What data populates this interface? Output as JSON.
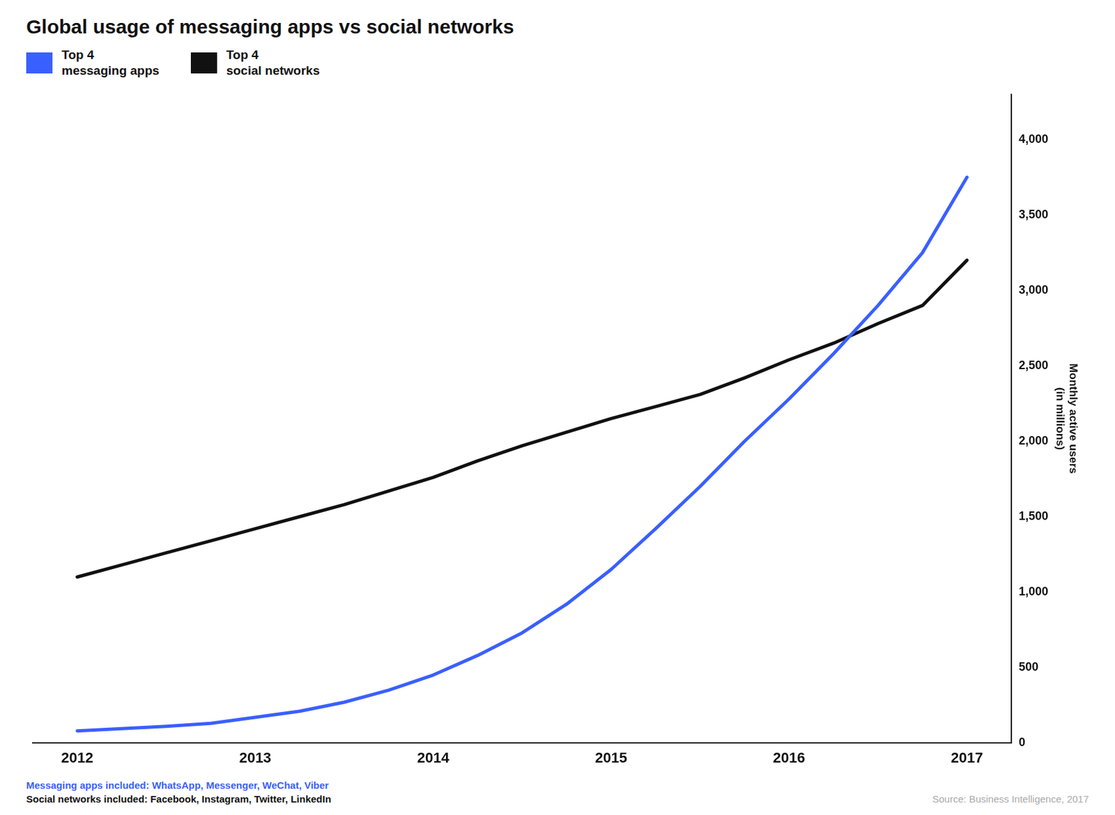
{
  "chart_data": {
    "type": "line",
    "title": "Global usage of messaging apps vs social networks",
    "y_label": "Monthly active users\n(in millions)",
    "x": [
      2012.0,
      2012.25,
      2012.5,
      2012.75,
      2013.0,
      2013.25,
      2013.5,
      2013.75,
      2014.0,
      2014.25,
      2014.5,
      2014.75,
      2015.0,
      2015.25,
      2015.5,
      2015.75,
      2016.0,
      2016.25,
      2016.5,
      2016.75,
      2017.0
    ],
    "series": [
      {
        "name": "Top 4\nmessaging apps",
        "color": "#3A5FFF",
        "values": [
          80,
          95,
          110,
          130,
          170,
          210,
          270,
          350,
          450,
          580,
          730,
          920,
          1150,
          1420,
          1700,
          2000,
          2280,
          2580,
          2900,
          3250,
          3750
        ]
      },
      {
        "name": "Top 4\nsocial networks",
        "color": "#111111",
        "values": [
          1100,
          1180,
          1260,
          1340,
          1420,
          1500,
          1580,
          1670,
          1760,
          1870,
          1970,
          2060,
          2150,
          2230,
          2310,
          2420,
          2540,
          2650,
          2780,
          2900,
          3200
        ]
      }
    ],
    "xlim": [
      2011.75,
      2017.25
    ],
    "xticks": [
      2012,
      2013,
      2014,
      2015,
      2016,
      2017
    ],
    "ylim": [
      0,
      4300
    ],
    "yticks": [
      0,
      500,
      {
        "value": 1000,
        "label": "1,000"
      },
      {
        "value": 1500,
        "label": "1,500"
      },
      {
        "value": 2000,
        "label": "2,000"
      },
      {
        "value": 2500,
        "label": "2,500"
      },
      {
        "value": 3000,
        "label": "3,000"
      },
      {
        "value": 3500,
        "label": "3,500"
      },
      {
        "value": 4000,
        "label": "4,000"
      }
    ],
    "grid": false,
    "legend": "upper left",
    "annotations": [
      {
        "text": "Messaging apps included: WhatsApp, Messenger, WeChat, Viber",
        "color": "#3A5FFF"
      },
      {
        "text": "Social networks included: Facebook, Instagram, Twitter, LinkedIn",
        "color": "#111111"
      },
      {
        "text": "Source: Business Intelligence, 2017",
        "color": "#AAAAAA"
      }
    ]
  }
}
